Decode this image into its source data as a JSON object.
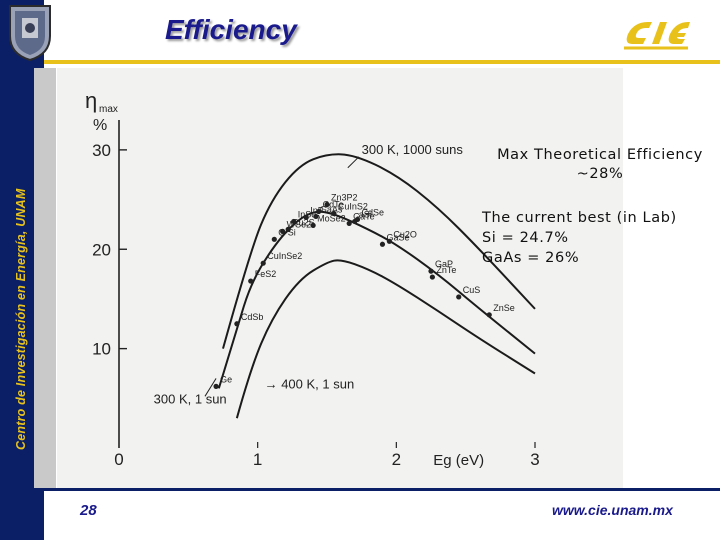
{
  "header": {
    "title": "Efficiency",
    "side_text": "Centro de Investigación en Energía, UNAM",
    "seal_icon": "unam-seal-icon",
    "logo_icon": "cie-logo-icon"
  },
  "notes": {
    "max_line1": "Max Theoretical Efficiency",
    "max_line2": "~28%",
    "best_line1": "The current best (in Lab)",
    "best_line2": "Si = 24.7%",
    "best_line3": "GaAs = 26%"
  },
  "footer": {
    "page_number": "28",
    "url": "www.cie.unam.mx"
  },
  "colors": {
    "navy": "#0a1f66",
    "gold": "#e8c21a",
    "title": "#1a1a8c"
  },
  "chart_data": {
    "type": "line",
    "title": "",
    "ylabel_symbol": "η",
    "ylabel_sub": "max",
    "ylabel_unit": "%",
    "xlabel": "Eg (eV)",
    "xlim": [
      0,
      3
    ],
    "ylim": [
      0,
      32
    ],
    "x_ticks": [
      "0",
      "1",
      "2",
      "3"
    ],
    "y_ticks": [
      "10",
      "20",
      "30"
    ],
    "series": [
      {
        "name": "300 K, 1000 suns",
        "label": "300 K, 1000 suns",
        "points": [
          [
            0.75,
            10
          ],
          [
            0.95,
            20
          ],
          [
            1.1,
            25
          ],
          [
            1.3,
            28.5
          ],
          [
            1.5,
            29.6
          ],
          [
            1.7,
            29.5
          ],
          [
            2.0,
            27.5
          ],
          [
            2.3,
            24.2
          ],
          [
            2.6,
            20
          ],
          [
            3.0,
            14
          ]
        ]
      },
      {
        "name": "300 K, 1 sun",
        "label": "300 K, 1 sun",
        "points": [
          [
            0.72,
            6
          ],
          [
            0.85,
            12
          ],
          [
            0.95,
            16.5
          ],
          [
            1.1,
            20
          ],
          [
            1.25,
            22.5
          ],
          [
            1.4,
            23.9
          ],
          [
            1.55,
            23.6
          ],
          [
            1.8,
            22
          ],
          [
            2.0,
            20.5
          ],
          [
            2.3,
            17.5
          ],
          [
            2.6,
            14
          ],
          [
            3.0,
            9.5
          ]
        ]
      },
      {
        "name": "400 K, 1 sun",
        "label": "400 K, 1 sun",
        "points": [
          [
            0.85,
            3
          ],
          [
            0.95,
            8
          ],
          [
            1.1,
            13
          ],
          [
            1.3,
            17
          ],
          [
            1.5,
            18.7
          ],
          [
            1.6,
            19
          ],
          [
            1.8,
            18
          ],
          [
            2.0,
            16.5
          ],
          [
            2.3,
            13.8
          ],
          [
            2.6,
            11
          ],
          [
            3.0,
            7.5
          ]
        ]
      }
    ],
    "materials": [
      {
        "name": "Zn3P2",
        "x": 1.5,
        "y": 24.5
      },
      {
        "name": "CdTe",
        "x": 1.44,
        "y": 23.8
      },
      {
        "name": "CuInS2",
        "x": 1.55,
        "y": 23.6
      },
      {
        "name": "InP",
        "x": 1.35,
        "y": 23.2
      },
      {
        "name": "InSe",
        "x": 1.26,
        "y": 22.8
      },
      {
        "name": "GaAs",
        "x": 1.42,
        "y": 23.3
      },
      {
        "name": "CdSe",
        "x": 1.72,
        "y": 23
      },
      {
        "name": "WSe2",
        "x": 1.18,
        "y": 21.8
      },
      {
        "name": "Cu2S",
        "x": 1.22,
        "y": 22
      },
      {
        "name": "C-Si",
        "x": 1.12,
        "y": 21
      },
      {
        "name": "MoSe2",
        "x": 1.4,
        "y": 22.4
      },
      {
        "name": "aSi",
        "x": 1.7,
        "y": 22.8
      },
      {
        "name": "GaTe",
        "x": 1.66,
        "y": 22.6
      },
      {
        "name": "Cu2O",
        "x": 1.95,
        "y": 20.8
      },
      {
        "name": "GaSe",
        "x": 1.9,
        "y": 20.5
      },
      {
        "name": "CuInSe2",
        "x": 1.04,
        "y": 18.6
      },
      {
        "name": "FeS2",
        "x": 0.95,
        "y": 16.8
      },
      {
        "name": "GaP",
        "x": 2.25,
        "y": 17.8
      },
      {
        "name": "ZnTe",
        "x": 2.26,
        "y": 17.2
      },
      {
        "name": "CuS",
        "x": 2.45,
        "y": 15.2
      },
      {
        "name": "CdSb",
        "x": 0.85,
        "y": 12.5
      },
      {
        "name": "ZnSe",
        "x": 2.67,
        "y": 13.4
      },
      {
        "name": "Ge",
        "x": 0.7,
        "y": 6.2
      }
    ]
  }
}
